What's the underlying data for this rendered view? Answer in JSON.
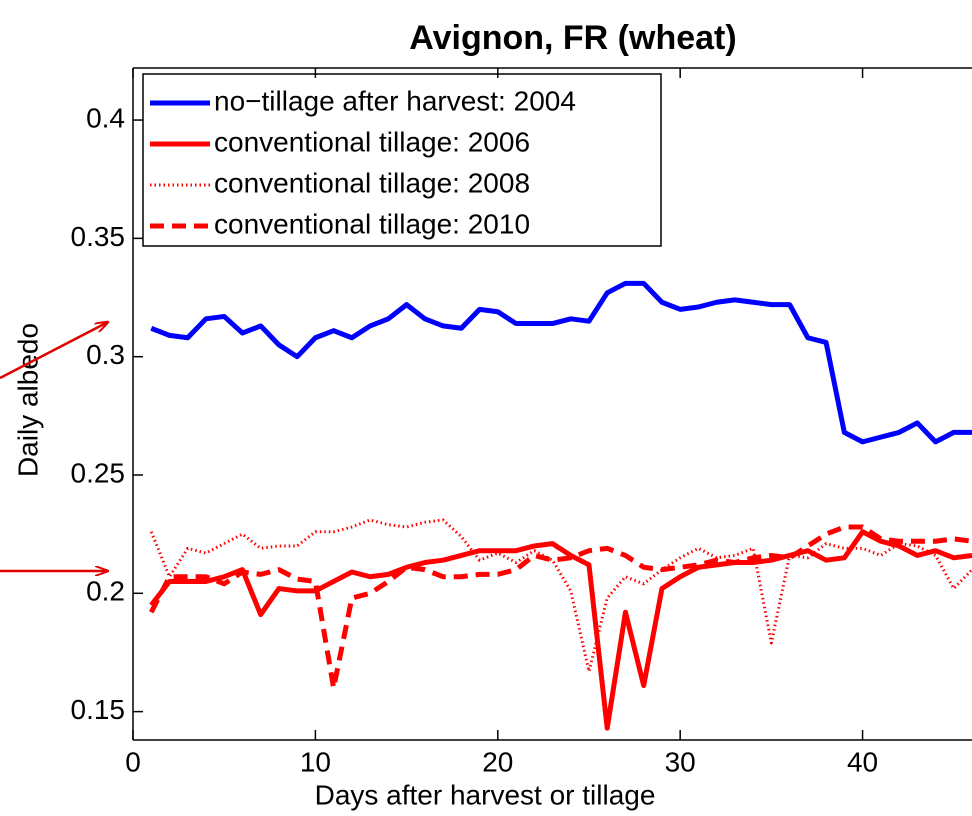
{
  "chart_data": {
    "type": "line",
    "title": "Avignon, FR (wheat)",
    "xlabel": "Days after harvest or tillage",
    "ylabel": "Daily albedo",
    "x": [
      1,
      2,
      3,
      4,
      5,
      6,
      7,
      8,
      9,
      10,
      11,
      12,
      13,
      14,
      15,
      16,
      17,
      18,
      19,
      20,
      21,
      22,
      23,
      24,
      25,
      26,
      27,
      28,
      29,
      30,
      31,
      32,
      33,
      34,
      35,
      36,
      37,
      38,
      39,
      40,
      41,
      42,
      43,
      44,
      45,
      46
    ],
    "series": [
      {
        "name": "no−tillage after harvest: 2004",
        "color": "#0000ff",
        "style": "solid",
        "values": [
          0.312,
          0.309,
          0.308,
          0.316,
          0.317,
          0.31,
          0.313,
          0.305,
          0.3,
          0.308,
          0.311,
          0.308,
          0.313,
          0.316,
          0.322,
          0.316,
          0.313,
          0.312,
          0.32,
          0.319,
          0.314,
          0.314,
          0.314,
          0.316,
          0.315,
          0.327,
          0.331,
          0.331,
          0.323,
          0.32,
          0.321,
          0.323,
          0.324,
          0.323,
          0.322,
          0.322,
          0.308,
          0.306,
          0.268,
          0.264,
          0.266,
          0.268,
          0.272,
          0.264,
          0.268,
          0.268
        ]
      },
      {
        "name": "conventional tillage: 2006",
        "color": "#ff0000",
        "style": "solid",
        "values": [
          0.195,
          0.205,
          0.205,
          0.205,
          0.207,
          0.21,
          0.191,
          0.202,
          0.201,
          0.201,
          0.205,
          0.209,
          0.207,
          0.208,
          0.211,
          0.213,
          0.214,
          0.216,
          0.218,
          0.218,
          0.218,
          0.22,
          0.221,
          0.216,
          0.212,
          0.143,
          0.192,
          0.161,
          0.202,
          0.207,
          0.211,
          0.212,
          0.213,
          0.213,
          0.214,
          0.216,
          0.218,
          0.214,
          0.215,
          0.226,
          0.222,
          0.22,
          0.216,
          0.218,
          0.215,
          0.216
        ]
      },
      {
        "name": "conventional tillage: 2008",
        "color": "#ff0000",
        "style": "dotted",
        "values": [
          0.226,
          0.207,
          0.219,
          0.217,
          0.221,
          0.225,
          0.219,
          0.22,
          0.22,
          0.226,
          0.226,
          0.228,
          0.231,
          0.229,
          0.228,
          0.23,
          0.231,
          0.224,
          0.214,
          0.217,
          0.213,
          0.218,
          0.214,
          0.201,
          0.167,
          0.198,
          0.207,
          0.204,
          0.21,
          0.215,
          0.219,
          0.215,
          0.216,
          0.219,
          0.179,
          0.216,
          0.215,
          0.221,
          0.219,
          0.219,
          0.216,
          0.221,
          0.22,
          0.216,
          0.202,
          0.21
        ]
      },
      {
        "name": "conventional tillage: 2010",
        "color": "#ff0000",
        "style": "dashed",
        "values": [
          0.192,
          0.207,
          0.207,
          0.207,
          0.204,
          0.209,
          0.208,
          0.21,
          0.206,
          0.205,
          0.16,
          0.198,
          0.2,
          0.205,
          0.211,
          0.21,
          0.207,
          0.207,
          0.208,
          0.208,
          0.21,
          0.216,
          0.214,
          0.215,
          0.218,
          0.219,
          0.216,
          0.211,
          0.21,
          0.211,
          0.212,
          0.214,
          0.213,
          0.215,
          0.216,
          0.215,
          0.22,
          0.225,
          0.228,
          0.228,
          0.223,
          0.222,
          0.222,
          0.222,
          0.223,
          0.222
        ]
      }
    ],
    "xlim": [
      0,
      46
    ],
    "ylim": [
      0.138,
      0.422
    ],
    "xticks": [
      0,
      10,
      20,
      30,
      40
    ],
    "yticks": [
      0.15,
      0.2,
      0.25,
      0.3,
      0.35,
      0.4
    ],
    "legend": "upper left"
  }
}
